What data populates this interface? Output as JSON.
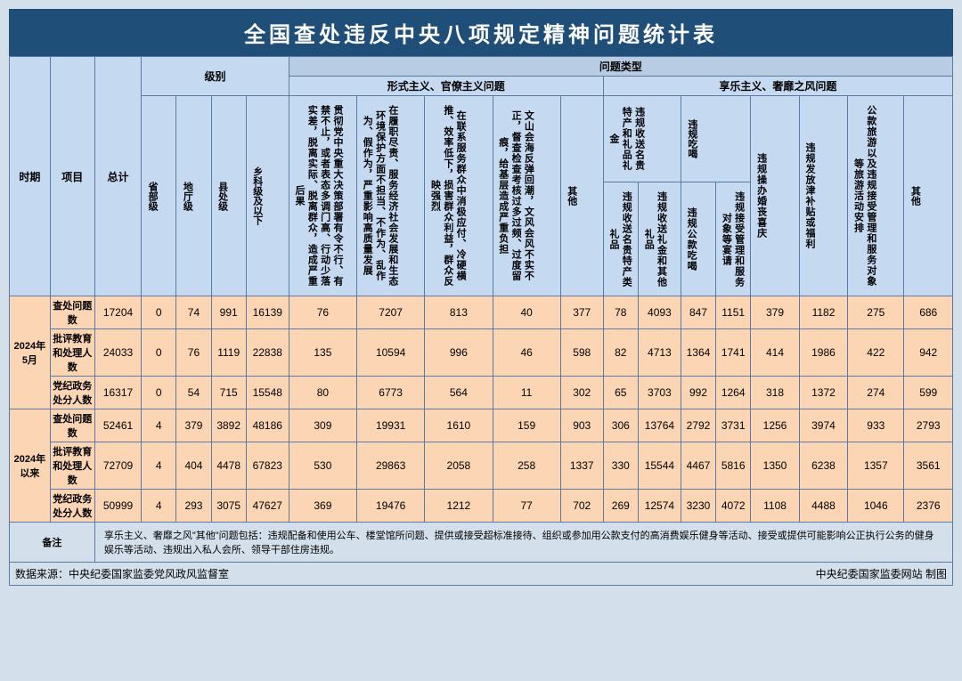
{
  "title": "全国查处违反中央八项规定精神问题统计表",
  "headers": {
    "period": "时期",
    "item": "项目",
    "total": "总计",
    "level": "级别",
    "issue_type": "问题类型",
    "formalism": "形式主义、官僚主义问题",
    "hedonism": "享乐主义、奢靡之风问题",
    "levels": [
      "省部级",
      "地厅级",
      "县处级",
      "乡科级及以下"
    ],
    "form_cols": [
      "贯彻党中央重大决策部署有令不行、有禁不止，或者表态多调门高、行动少落实差，脱离实际、脱离群众，造成严重后果",
      "在履职尽责、服务经济社会发展和生态环境保护方面不担当、不作为、乱作为、假作为，严重影响高质量发展",
      "在联系服务群众中消极应付、冷硬横推、效率低下，损害群众利益，群众反映强烈",
      "文山会海反弹回潮，文风会风不实不正，督查检查考核过多过频、过度留痕，给基层造成严重负担",
      "其他"
    ],
    "hed_group1": "违规收送名贵特产和礼品礼金",
    "hed_group2": "违规吃喝",
    "hed_sub": [
      "违规收送名贵特产类礼品",
      "违规收送礼金和其他礼品",
      "违规公款吃喝",
      "违规接受管理和服务对象等宴请"
    ],
    "hed_rest": [
      "违规操办婚丧喜庆",
      "违规发放津补贴或福利",
      "公款旅游以及违规接受管理和服务对象等旅游活动安排",
      "其他"
    ]
  },
  "periods": [
    {
      "label": "2024年5月",
      "rows": [
        {
          "name": "查处问题数",
          "vals": [
            17204,
            0,
            74,
            991,
            16139,
            76,
            7207,
            813,
            40,
            377,
            78,
            4093,
            847,
            1151,
            379,
            1182,
            275,
            686
          ]
        },
        {
          "name": "批评教育和处理人数",
          "vals": [
            24033,
            0,
            76,
            1119,
            22838,
            135,
            10594,
            996,
            46,
            598,
            82,
            4713,
            1364,
            1741,
            414,
            1986,
            422,
            942
          ]
        },
        {
          "name": "党纪政务处分人数",
          "vals": [
            16317,
            0,
            54,
            715,
            15548,
            80,
            6773,
            564,
            11,
            302,
            65,
            3703,
            992,
            1264,
            318,
            1372,
            274,
            599
          ]
        }
      ]
    },
    {
      "label": "2024年以来",
      "rows": [
        {
          "name": "查处问题数",
          "vals": [
            52461,
            4,
            379,
            3892,
            48186,
            309,
            19931,
            1610,
            159,
            903,
            306,
            13764,
            2792,
            3731,
            1256,
            3974,
            933,
            2793
          ]
        },
        {
          "name": "批评教育和处理人数",
          "vals": [
            72709,
            4,
            404,
            4478,
            67823,
            530,
            29863,
            2058,
            258,
            1337,
            330,
            15544,
            4467,
            5816,
            1350,
            6238,
            1357,
            3561
          ]
        },
        {
          "name": "党纪政务处分人数",
          "vals": [
            50999,
            4,
            293,
            3075,
            47627,
            369,
            19476,
            1212,
            77,
            702,
            269,
            12574,
            3230,
            4072,
            1108,
            4488,
            1046,
            2376
          ]
        }
      ]
    }
  ],
  "note_label": "备注",
  "note": "享乐主义、奢靡之风\"其他\"问题包括：违规配备和使用公车、楼堂馆所问题、提供或接受超标准接待、组织或参加用公款支付的高消费娱乐健身等活动、接受或提供可能影响公正执行公务的健身娱乐等活动、违规出入私人会所、领导干部住房违规。",
  "footer_left": "数据来源：中央纪委国家监委党风政风监督室",
  "footer_right": "中央纪委国家监委网站 制图",
  "colors": {
    "title_bg": "#1f4e79",
    "hdr": "#c5d9f1",
    "data": "#fcd5b4",
    "border": "#5b7ba5",
    "page": "#d4dfec"
  }
}
